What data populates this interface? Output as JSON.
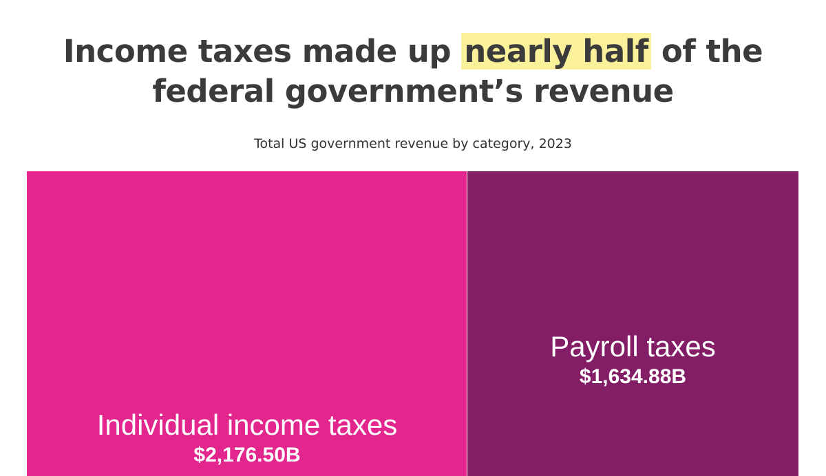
{
  "headline": {
    "pre": "Income taxes made up ",
    "highlight": "nearly half",
    "post": " of the federal government’s revenue"
  },
  "chart_data": {
    "type": "treemap",
    "title": "Total US government revenue by category, 2023",
    "series": [
      {
        "name": "Individual income taxes",
        "value": 2176.5,
        "value_label": "$2,176.50B",
        "color": "#e3268e"
      },
      {
        "name": "Payroll taxes",
        "value": 1634.88,
        "value_label": "$1,634.88B",
        "color": "#821d66"
      }
    ]
  },
  "colors": {
    "highlight": "#fbf19a",
    "headline_text": "#3b3b3b"
  }
}
